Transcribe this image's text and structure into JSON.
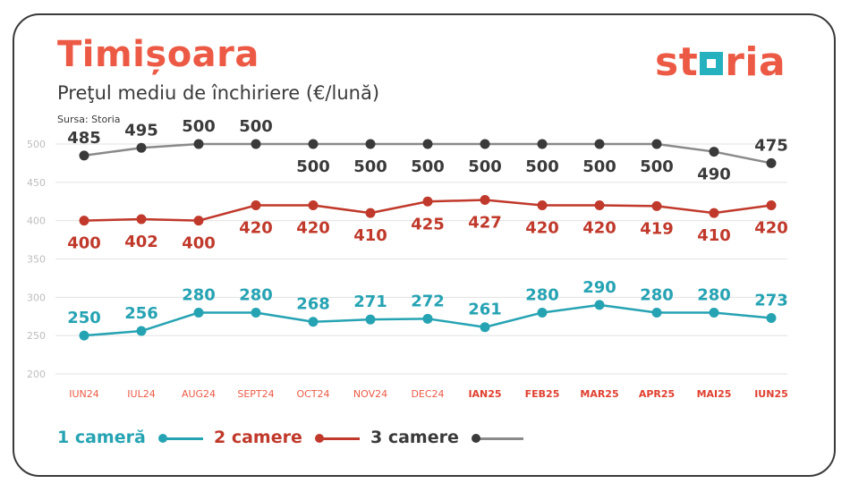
{
  "header": {
    "title": "Timișoara",
    "subtitle": "Preţul mediu de închiriere (€/lună)",
    "source": "Sursa: Storia",
    "logo_text": "storia"
  },
  "colors": {
    "accent": "#ec5a45",
    "series_1": "#26a3b3",
    "series_2": "#c0392b",
    "series_3_line": "#8a8a8a",
    "series_3_marker": "#3a3a3a",
    "x_label_2024": "#ec5a45",
    "x_label_2025": "#e04030",
    "grid": "#e2e2e2",
    "tick": "#bdbdbd"
  },
  "chart_data": {
    "type": "line",
    "title": "Preţul mediu de închiriere (€/lună)",
    "categories": [
      "IUN24",
      "IUL24",
      "AUG24",
      "SEPT24",
      "OCT24",
      "NOV24",
      "DEC24",
      "IAN25",
      "FEB25",
      "MAR25",
      "APR25",
      "MAI25",
      "IUN25"
    ],
    "bold_from_index": 7,
    "ylim": [
      200,
      500
    ],
    "yticks": [
      200,
      250,
      300,
      350,
      400,
      450,
      500
    ],
    "grid": "horizontal",
    "legend_position": "bottom-left",
    "series": [
      {
        "name": "1 cameră",
        "values": [
          250,
          256,
          280,
          280,
          268,
          271,
          272,
          261,
          280,
          290,
          280,
          280,
          273
        ],
        "label_position": "above"
      },
      {
        "name": "2 camere",
        "values": [
          400,
          402,
          400,
          420,
          420,
          410,
          425,
          427,
          420,
          420,
          419,
          410,
          420
        ],
        "label_position": "below"
      },
      {
        "name": "3 camere",
        "values": [
          485,
          495,
          500,
          500,
          500,
          500,
          500,
          500,
          500,
          500,
          500,
          490,
          475
        ],
        "label_position": [
          "above",
          "above",
          "above",
          "above",
          "below",
          "below",
          "below",
          "below",
          "below",
          "below",
          "below",
          "below",
          "above"
        ]
      }
    ]
  },
  "legend": [
    {
      "label": "1 cameră"
    },
    {
      "label": "2 camere"
    },
    {
      "label": "3 camere"
    }
  ]
}
